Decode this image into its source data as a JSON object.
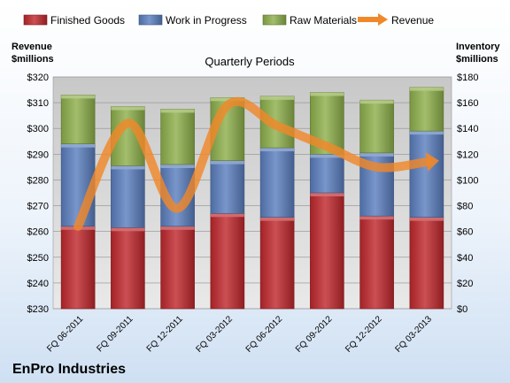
{
  "chart_data": {
    "type": "bar",
    "stacked": true,
    "title": "Quarterly Periods",
    "company": "EnPro Industries",
    "left_axis_label": [
      "Revenue",
      "$millions"
    ],
    "right_axis_label": [
      "Inventory",
      "$millions"
    ],
    "categories": [
      "FQ 06-2011",
      "FQ 09-2011",
      "FQ 12-2011",
      "FQ 03-2012",
      "FQ 06-2012",
      "FQ 09-2012",
      "FQ 12-2012",
      "FQ 03-2013"
    ],
    "left_axis": {
      "min": 230,
      "max": 320,
      "step": 10,
      "tick_prefix": "$"
    },
    "right_axis": {
      "min": 0,
      "max": 180,
      "step": 20,
      "tick_prefix": "$"
    },
    "series": [
      {
        "name": "Finished Goods",
        "axis": "right",
        "kind": "bar",
        "color": "#c0282d",
        "values": [
          64,
          63,
          64,
          74,
          71,
          90,
          72,
          71
        ]
      },
      {
        "name": "Work in Progress",
        "axis": "right",
        "kind": "bar",
        "color": "#5b7fbf",
        "values": [
          64,
          48,
          48,
          41,
          54,
          30,
          49,
          67
        ]
      },
      {
        "name": "Raw Materials",
        "axis": "right",
        "kind": "bar",
        "color": "#8eb04c",
        "values": [
          38,
          46,
          43,
          49,
          40,
          48,
          41,
          34
        ]
      },
      {
        "name": "Revenue",
        "axis": "left",
        "kind": "line",
        "color": "#f0882a",
        "values": [
          262,
          302,
          269,
          309,
          301,
          293,
          285,
          287
        ]
      }
    ],
    "legend_position": "top",
    "grid": true
  }
}
